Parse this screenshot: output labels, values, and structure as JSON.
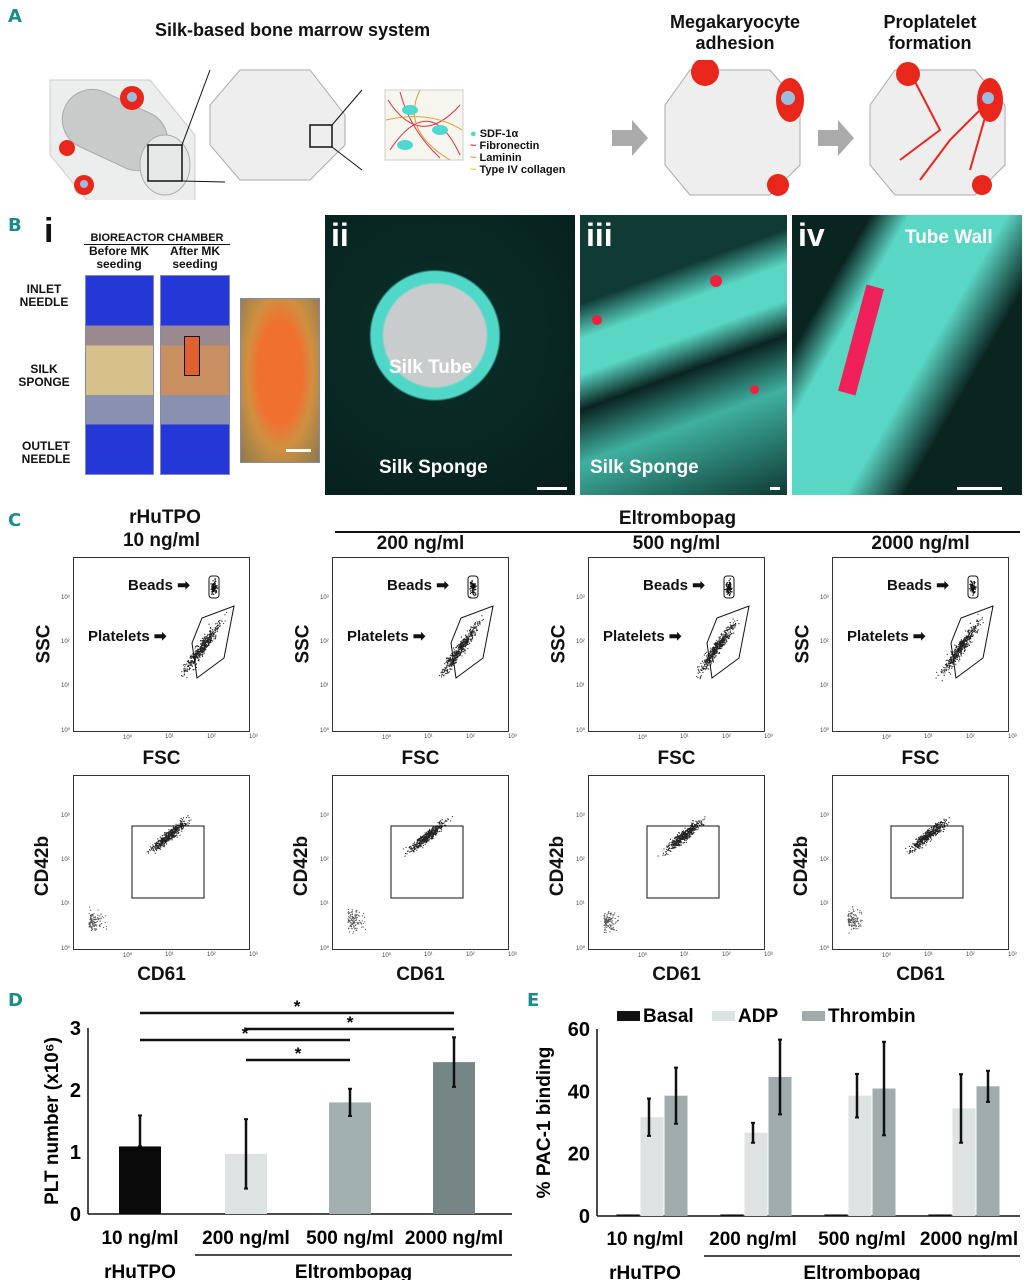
{
  "panel_labels": {
    "a": "A",
    "b": "B",
    "c": "C",
    "d": "D",
    "e": "E"
  },
  "panel_a": {
    "title": "Silk-based bone marrow system",
    "legend": [
      "SDF-1α",
      "Fibronectin",
      "Laminin",
      "Type IV collagen"
    ],
    "legend_colors": [
      "#4fd8d0",
      "#e0304a",
      "#e0a030",
      "#d8d030"
    ],
    "step2_title": "Megakaryocyte adhesion",
    "step3_title": "Proplatelet formation"
  },
  "panel_b": {
    "sub_i": "i",
    "chamber_title": "BIOREACTOR CHAMBER",
    "before": "Before MK seeding",
    "after": "After MK seeding",
    "labels": [
      "INLET NEEDLE",
      "SILK SPONGE",
      "OUTLET NEEDLE"
    ],
    "sub_ii": "ii",
    "ii_labels": [
      "Silk Tube",
      "Silk Sponge"
    ],
    "sub_iii": "iii",
    "iii_label": "Silk Sponge",
    "sub_iv": "iv",
    "iv_label": "Tube Wall"
  },
  "panel_c": {
    "group_title": "Eltrombopag",
    "columns": [
      {
        "top": "rHuTPO",
        "dose": "10 ng/ml"
      },
      {
        "top": "",
        "dose": "200 ng/ml"
      },
      {
        "top": "",
        "dose": "500 ng/ml"
      },
      {
        "top": "",
        "dose": "2000 ng/ml"
      }
    ],
    "scatter_x": "FSC",
    "scatter_y": "SSC",
    "beads": "Beads",
    "platelets": "Platelets",
    "marker_x": "CD61",
    "marker_y": "CD42b",
    "ticks": [
      "10⁰",
      "10¹",
      "10²",
      "10³"
    ]
  },
  "chart_data": [
    {
      "type": "bar",
      "ylabel": "PLT number (x10⁶)",
      "ylim": [
        0,
        3
      ],
      "yticks": [
        "0",
        "1",
        "2",
        "3"
      ],
      "categories": [
        "10 ng/ml",
        "200 ng/ml",
        "500 ng/ml",
        "2000 ng/ml"
      ],
      "values": [
        1.09,
        0.97,
        1.8,
        2.45
      ],
      "errors": [
        0.5,
        0.56,
        0.22,
        0.4
      ],
      "colors": [
        "#0a0a0a",
        "#dde2e2",
        "#a3b0b0",
        "#768585"
      ],
      "group_labels": {
        "rHuTPO": "rHuTPO",
        "eltrombopag": "Eltrombopag"
      },
      "significance": [
        {
          "from": 0,
          "to": 3,
          "label": "*"
        },
        {
          "from": 1,
          "to": 3,
          "label": "*"
        },
        {
          "from": 0,
          "to": 2,
          "label": "*"
        },
        {
          "from": 1,
          "to": 2,
          "label": "*"
        }
      ]
    },
    {
      "type": "bar",
      "ylabel": "% PAC-1 binding",
      "ylim": [
        0,
        60
      ],
      "yticks": [
        "0",
        "20",
        "40",
        "60"
      ],
      "categories": [
        "10 ng/ml",
        "200 ng/ml",
        "500 ng/ml",
        "2000 ng/ml"
      ],
      "legend_position": "top",
      "series": [
        {
          "name": "Basal",
          "color": "#111111",
          "values": [
            0.5,
            0.5,
            0.5,
            0.5
          ],
          "errors": [
            0,
            0,
            0,
            0
          ]
        },
        {
          "name": "ADP",
          "color": "#dde2e2",
          "values": [
            31.7,
            26.7,
            38.6,
            34.5
          ],
          "errors": [
            6,
            3.2,
            7,
            11
          ]
        },
        {
          "name": "Thrombin",
          "color": "#a0acac",
          "values": [
            38.6,
            44.6,
            40.9,
            41.6
          ],
          "errors": [
            9,
            12,
            15,
            5
          ]
        }
      ],
      "group_labels": {
        "rHuTPO": "rHuTPO",
        "eltrombopag": "Eltrombopag"
      }
    }
  ]
}
